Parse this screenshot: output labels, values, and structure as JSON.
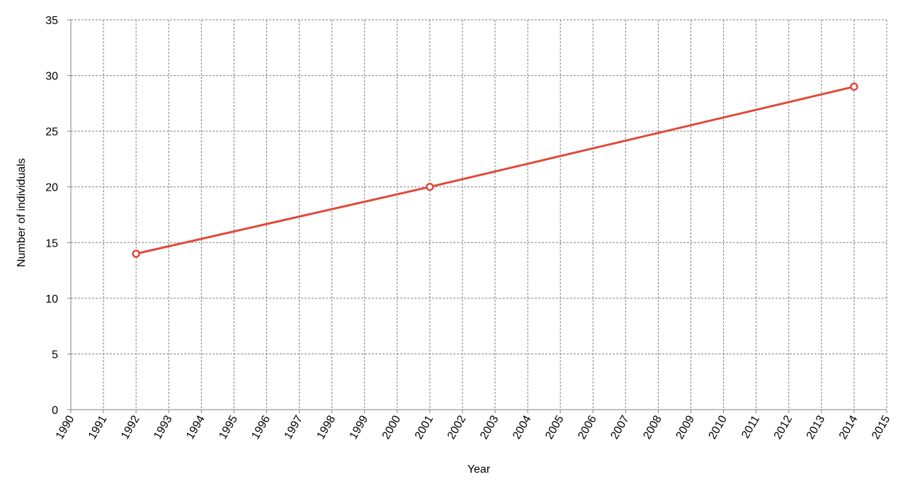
{
  "chart_data": {
    "type": "line",
    "title": "",
    "xlabel": "Year",
    "ylabel": "Number of individuals",
    "xlim": [
      1990,
      2015
    ],
    "ylim": [
      0,
      35
    ],
    "x_ticks": [
      1990,
      1991,
      1992,
      1993,
      1994,
      1995,
      1996,
      1997,
      1998,
      1999,
      2000,
      2001,
      2002,
      2003,
      2004,
      2005,
      2006,
      2007,
      2008,
      2009,
      2010,
      2011,
      2012,
      2013,
      2014,
      2015
    ],
    "y_ticks": [
      0,
      5,
      10,
      15,
      20,
      25,
      30,
      35
    ],
    "grid": true,
    "series": [
      {
        "x": [
          1992,
          2001,
          2014
        ],
        "y": [
          14,
          20,
          29
        ],
        "color": "#e04a3a",
        "marker": "hollow-circle"
      }
    ]
  }
}
